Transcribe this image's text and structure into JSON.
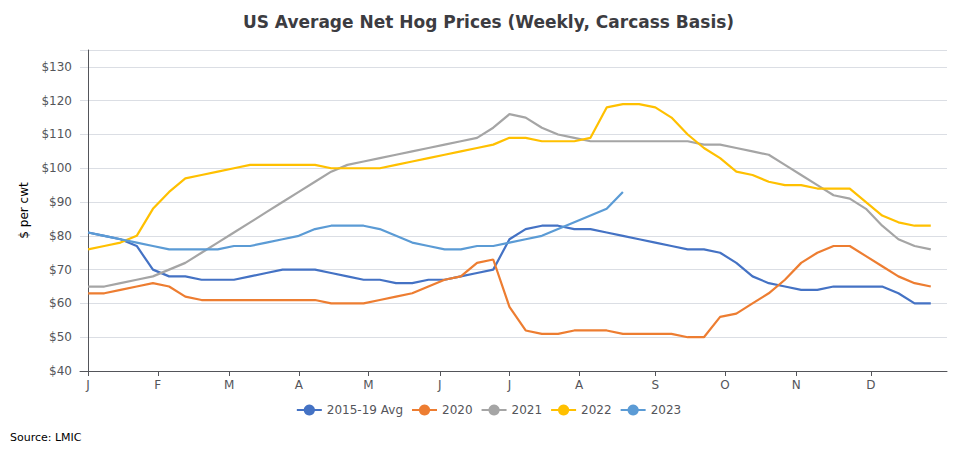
{
  "chart_data": {
    "type": "line",
    "title": "US Average Net Hog Prices (Weekly, Carcass Basis)",
    "ylabel": "$ per cwt",
    "source": "Source: LMIC",
    "x": [
      0,
      1,
      2,
      3,
      4,
      5,
      6,
      7,
      8,
      9,
      10,
      11,
      12,
      13,
      14,
      15,
      16,
      17,
      18,
      19,
      20,
      21,
      22,
      23,
      24,
      25,
      26,
      27,
      28,
      29,
      30,
      31,
      32,
      33,
      34,
      35,
      36,
      37,
      38,
      39,
      40,
      41,
      42,
      43,
      44,
      45,
      46,
      47,
      48,
      49,
      50,
      51,
      52
    ],
    "xlim": [
      -0.5,
      53
    ],
    "xticks": [
      {
        "value": 0,
        "label": "J"
      },
      {
        "value": 4.3,
        "label": "F"
      },
      {
        "value": 8.7,
        "label": "M"
      },
      {
        "value": 13,
        "label": "A"
      },
      {
        "value": 17.3,
        "label": "M"
      },
      {
        "value": 21.7,
        "label": "J"
      },
      {
        "value": 26,
        "label": "J"
      },
      {
        "value": 30.3,
        "label": "A"
      },
      {
        "value": 35,
        "label": "S"
      },
      {
        "value": 39.3,
        "label": "O"
      },
      {
        "value": 43.7,
        "label": "N"
      },
      {
        "value": 48.3,
        "label": "D"
      }
    ],
    "ylim": [
      40,
      135
    ],
    "yticks": [
      {
        "value": 40,
        "label": "$40"
      },
      {
        "value": 50,
        "label": "$50"
      },
      {
        "value": 60,
        "label": "$60"
      },
      {
        "value": 70,
        "label": "$70"
      },
      {
        "value": 80,
        "label": "$80"
      },
      {
        "value": 90,
        "label": "$90"
      },
      {
        "value": 100,
        "label": "$100"
      },
      {
        "value": 110,
        "label": "$110"
      },
      {
        "value": 120,
        "label": "$120"
      },
      {
        "value": 130,
        "label": "$130"
      }
    ],
    "grid": true,
    "legend": "bottom",
    "series": [
      {
        "name": "2015-19 Avg",
        "color": "#4472C4",
        "values": [
          81,
          80,
          79,
          77,
          70,
          68,
          68,
          67,
          67,
          67,
          68,
          69,
          70,
          70,
          70,
          69,
          68,
          67,
          67,
          66,
          66,
          67,
          67,
          68,
          69,
          70,
          79,
          82,
          83,
          83,
          82,
          82,
          81,
          80,
          79,
          78,
          77,
          76,
          76,
          75,
          72,
          68,
          66,
          65,
          64,
          64,
          65,
          65,
          65,
          65,
          63,
          60,
          60
        ]
      },
      {
        "name": "2020",
        "color": "#ED7D31",
        "values": [
          63,
          63,
          64,
          65,
          66,
          65,
          62,
          61,
          61,
          61,
          61,
          61,
          61,
          61,
          61,
          60,
          60,
          60,
          61,
          62,
          63,
          65,
          67,
          68,
          72,
          73,
          59,
          52,
          51,
          51,
          52,
          52,
          52,
          51,
          51,
          51,
          51,
          50,
          50,
          56,
          57,
          60,
          63,
          67,
          72,
          75,
          77,
          77,
          74,
          71,
          68,
          66,
          65
        ]
      },
      {
        "name": "2021",
        "color": "#A5A5A5",
        "values": [
          65,
          65,
          66,
          67,
          68,
          70,
          72,
          75,
          78,
          81,
          84,
          87,
          90,
          93,
          96,
          99,
          101,
          102,
          103,
          104,
          105,
          106,
          107,
          108,
          109,
          112,
          116,
          115,
          112,
          110,
          109,
          108,
          108,
          108,
          108,
          108,
          108,
          108,
          107,
          107,
          106,
          105,
          104,
          101,
          98,
          95,
          92,
          91,
          88,
          83,
          79,
          77,
          76
        ]
      },
      {
        "name": "2022",
        "color": "#FFC000",
        "values": [
          76,
          77,
          78,
          80,
          88,
          93,
          97,
          98,
          99,
          100,
          101,
          101,
          101,
          101,
          101,
          100,
          100,
          100,
          100,
          101,
          102,
          103,
          104,
          105,
          106,
          107,
          109,
          109,
          108,
          108,
          108,
          109,
          118,
          119,
          119,
          118,
          115,
          110,
          106,
          103,
          99,
          98,
          96,
          95,
          95,
          94,
          94,
          94,
          90,
          86,
          84,
          83,
          83
        ]
      },
      {
        "name": "2023",
        "color": "#5B9BD5",
        "values": [
          81,
          80,
          79,
          78,
          77,
          76,
          76,
          76,
          76,
          77,
          77,
          78,
          79,
          80,
          82,
          83,
          83,
          83,
          82,
          80,
          78,
          77,
          76,
          76,
          77,
          77,
          78,
          79,
          80,
          82,
          84,
          86,
          88,
          93,
          null,
          null,
          null,
          null,
          null,
          null,
          null,
          null,
          null,
          null,
          null,
          null,
          null,
          null,
          null,
          null,
          null,
          null,
          null
        ]
      }
    ]
  }
}
